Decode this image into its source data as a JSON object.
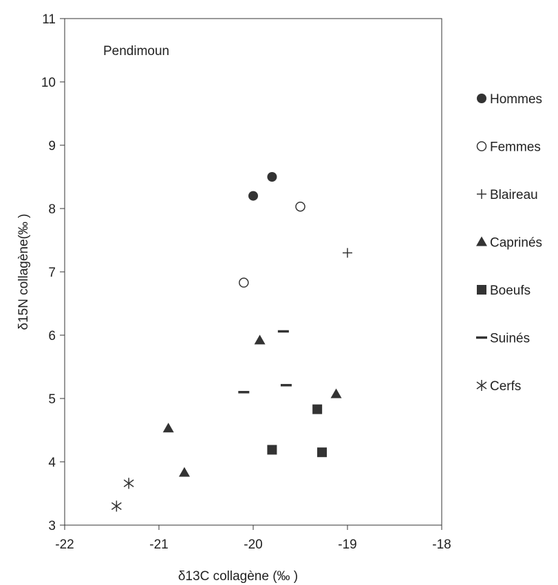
{
  "chart_data": {
    "type": "scatter",
    "title": "",
    "annotation": "Pendimoun",
    "xlabel": "δ13C collagène (‰ )",
    "ylabel": "δ15N collagène(‰ )",
    "xlim": [
      -22,
      -18
    ],
    "ylim": [
      3,
      11
    ],
    "x_ticks": [
      "-22",
      "-21",
      "-20",
      "-19",
      "-18"
    ],
    "y_ticks": [
      "3",
      "4",
      "5",
      "6",
      "7",
      "8",
      "9",
      "10",
      "11"
    ],
    "grid": false,
    "legend_position": "right",
    "series": [
      {
        "name": "Hommes",
        "marker": "filled-circle",
        "color": "#333333",
        "points": [
          {
            "x": -20.0,
            "y": 8.2
          },
          {
            "x": -19.8,
            "y": 8.5
          }
        ]
      },
      {
        "name": "Femmes",
        "marker": "open-circle",
        "color": "#333333",
        "points": [
          {
            "x": -19.5,
            "y": 8.03
          },
          {
            "x": -20.1,
            "y": 6.83
          }
        ]
      },
      {
        "name": "Blaireau",
        "marker": "plus",
        "color": "#333333",
        "points": [
          {
            "x": -19.0,
            "y": 7.3
          }
        ]
      },
      {
        "name": "Caprinés",
        "marker": "triangle",
        "color": "#333333",
        "points": [
          {
            "x": -19.93,
            "y": 5.92
          },
          {
            "x": -19.12,
            "y": 5.07
          },
          {
            "x": -20.9,
            "y": 4.53
          },
          {
            "x": -20.73,
            "y": 3.83
          }
        ]
      },
      {
        "name": "Boeufs",
        "marker": "square",
        "color": "#333333",
        "points": [
          {
            "x": -19.32,
            "y": 4.83
          },
          {
            "x": -19.8,
            "y": 4.19
          },
          {
            "x": -19.27,
            "y": 4.15
          }
        ]
      },
      {
        "name": "Suinés",
        "marker": "dash",
        "color": "#333333",
        "points": [
          {
            "x": -19.68,
            "y": 6.06
          },
          {
            "x": -20.1,
            "y": 5.1
          },
          {
            "x": -19.65,
            "y": 5.21
          }
        ]
      },
      {
        "name": "Cerfs",
        "marker": "asterisk",
        "color": "#333333",
        "points": [
          {
            "x": -21.32,
            "y": 3.66
          },
          {
            "x": -21.45,
            "y": 3.3
          }
        ]
      }
    ]
  }
}
